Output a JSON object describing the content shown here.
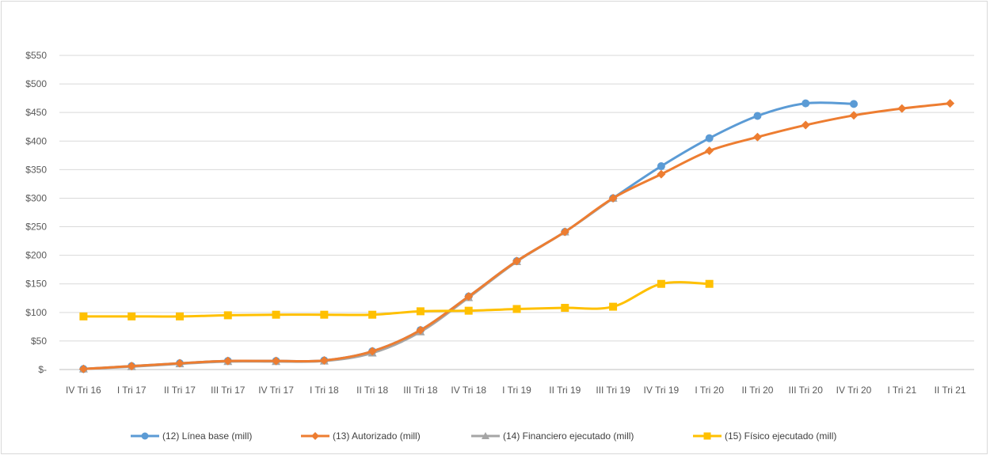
{
  "chart_data": {
    "type": "line",
    "title": "",
    "xlabel": "",
    "ylabel": "",
    "categories": [
      "IV Tri 16",
      "I Tri 17",
      "II Tri 17",
      "III Tri 17",
      "IV Tri 17",
      "I Tri 18",
      "II Tri 18",
      "III Tri 18",
      "IV Tri 18",
      "I Tri 19",
      "II Tri 19",
      "III Tri 19",
      "IV Tri 19",
      "I Tri 20",
      "II Tri 20",
      "III Tri 20",
      "IV Tri 20",
      "I Tri 21",
      "II Tri 21"
    ],
    "ylim": [
      0,
      550
    ],
    "yticks": [
      0,
      50,
      100,
      150,
      200,
      250,
      300,
      350,
      400,
      450,
      500,
      550
    ],
    "ytick_labels": [
      "$-",
      "$50",
      "$100",
      "$150",
      "$200",
      "$250",
      "$300",
      "$350",
      "$400",
      "$450",
      "$500",
      "$550"
    ],
    "grid": true,
    "legend_position": "bottom",
    "series": [
      {
        "name": "(12) Línea base (mill)",
        "color": "#5b9bd5",
        "marker": "circle",
        "values": [
          1,
          6,
          11,
          15,
          15,
          16,
          32,
          69,
          128,
          190,
          241,
          300,
          356,
          405,
          444,
          466,
          465,
          null,
          null
        ]
      },
      {
        "name": "(13) Autorizado (mill)",
        "color": "#ed7d31",
        "marker": "diamond",
        "values": [
          1,
          6,
          11,
          15,
          15,
          16,
          32,
          69,
          128,
          190,
          241,
          300,
          342,
          383,
          407,
          428,
          445,
          457,
          466
        ]
      },
      {
        "name": "(14) Financiero ejecutado (mill)",
        "color": "#a5a5a5",
        "marker": "triangle",
        "values": [
          1,
          5,
          10,
          14,
          14,
          15,
          29,
          66,
          126,
          189,
          241,
          300,
          null,
          null,
          null,
          null,
          null,
          null,
          null
        ]
      },
      {
        "name": "(15) Físico ejecutado (mill)",
        "color": "#ffc000",
        "marker": "square",
        "values": [
          93,
          93,
          93,
          95,
          96,
          96,
          96,
          102,
          103,
          106,
          108,
          110,
          150,
          150,
          null,
          null,
          null,
          null,
          null
        ]
      }
    ]
  }
}
